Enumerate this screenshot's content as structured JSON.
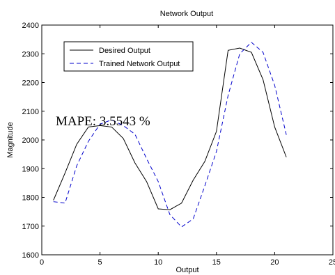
{
  "chart_data": {
    "type": "line",
    "title": "Network Output",
    "xlabel": "Output",
    "ylabel": "Magnitude",
    "xlim": [
      0,
      25
    ],
    "ylim": [
      1600,
      2400
    ],
    "xticks": [
      "0",
      "5",
      "10",
      "15",
      "20",
      "25"
    ],
    "yticks": [
      "1600",
      "1700",
      "1800",
      "1900",
      "2000",
      "2100",
      "2200",
      "2300",
      "2400"
    ],
    "grid": false,
    "legend_position": "top-left",
    "annotation": "MAPE: 3.5543 %",
    "x": [
      1,
      2,
      3,
      4,
      5,
      6,
      7,
      8,
      9,
      10,
      11,
      12,
      13,
      14,
      15,
      16,
      17,
      18,
      19,
      20,
      21
    ],
    "series": [
      {
        "name": "Desired Output",
        "style": "solid",
        "color": "#000000",
        "values": [
          1790,
          1885,
          1985,
          2045,
          2050,
          2045,
          2005,
          1920,
          1855,
          1760,
          1757,
          1780,
          1860,
          1925,
          2030,
          2312,
          2320,
          2305,
          2210,
          2045,
          1940
        ]
      },
      {
        "name": "Trained Network Output",
        "style": "dashed",
        "color": "#0000cc",
        "values": [
          1785,
          1780,
          1910,
          1995,
          2055,
          2070,
          2050,
          2020,
          1935,
          1855,
          1740,
          1697,
          1725,
          1840,
          1960,
          2155,
          2300,
          2340,
          2305,
          2190,
          2018
        ]
      }
    ]
  }
}
